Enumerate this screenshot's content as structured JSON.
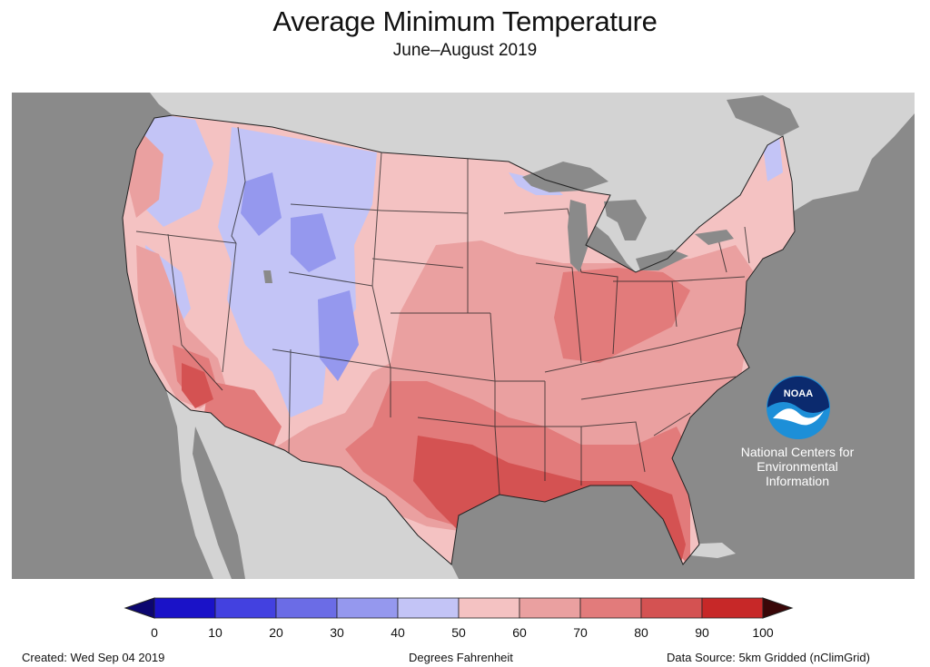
{
  "header": {
    "title": "Average Minimum Temperature",
    "subtitle": "June–August 2019"
  },
  "logo": {
    "agency": "NOAA",
    "org_lines": [
      "National Centers for",
      "Environmental",
      "Information"
    ]
  },
  "legend": {
    "ticks": [
      "0",
      "10",
      "20",
      "30",
      "40",
      "50",
      "60",
      "70",
      "80",
      "90",
      "100"
    ],
    "colors": [
      "#1a12c8",
      "#4341e0",
      "#6b6ce6",
      "#9598ee",
      "#c3c4f6",
      "#f4c2c2",
      "#eaa0a0",
      "#e27b7b",
      "#d45252",
      "#c72828"
    ],
    "low_arrow_color": "#0c0670",
    "high_arrow_color": "#3a0708",
    "units": "Degrees Fahrenheit"
  },
  "footer": {
    "created": "Created: Wed Sep 04 2019",
    "units": "Degrees Fahrenheit",
    "source": "Data Source: 5km Gridded (nClimGrid)"
  },
  "map": {
    "ocean_color": "#8a8a8a",
    "land_color": "#d3d3d3",
    "lake_color": "#8a8a8a"
  }
}
